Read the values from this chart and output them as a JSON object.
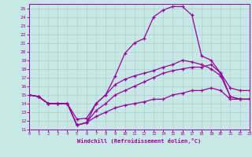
{
  "xlabel": "Windchill (Refroidissement éolien,°C)",
  "background_color": "#c8e8e8",
  "grid_color": "#a8d0d0",
  "line_color": "#990099",
  "xlim": [
    0,
    23
  ],
  "ylim": [
    11,
    25.5
  ],
  "yticks": [
    11,
    12,
    13,
    14,
    15,
    16,
    17,
    18,
    19,
    20,
    21,
    22,
    23,
    24,
    25
  ],
  "xticks": [
    0,
    1,
    2,
    3,
    4,
    5,
    6,
    7,
    8,
    9,
    10,
    11,
    12,
    13,
    14,
    15,
    16,
    17,
    18,
    19,
    20,
    21,
    22,
    23
  ],
  "line1_x": [
    0,
    1,
    2,
    3,
    4,
    5,
    6,
    7,
    8,
    9,
    10,
    11,
    12,
    13,
    14,
    15,
    16,
    17,
    18,
    19,
    20,
    21,
    22,
    23
  ],
  "line1_y": [
    15.0,
    14.8,
    14.0,
    14.0,
    14.0,
    12.2,
    12.3,
    14.0,
    15.0,
    17.2,
    19.8,
    21.0,
    21.5,
    24.0,
    24.8,
    25.2,
    25.2,
    24.2,
    19.5,
    19.0,
    17.5,
    14.8,
    14.5,
    14.5
  ],
  "line2_x": [
    0,
    1,
    2,
    3,
    4,
    5,
    6,
    7,
    8,
    9,
    10,
    11,
    12,
    13,
    14,
    15,
    16,
    17,
    18,
    19,
    20,
    21,
    22,
    23
  ],
  "line2_y": [
    15.0,
    14.8,
    14.0,
    14.0,
    14.0,
    11.5,
    11.8,
    14.0,
    15.0,
    16.2,
    16.8,
    17.2,
    17.5,
    17.8,
    18.2,
    18.5,
    19.0,
    18.8,
    18.5,
    18.0,
    17.2,
    14.8,
    14.5,
    14.5
  ],
  "line3_x": [
    0,
    1,
    2,
    3,
    4,
    5,
    6,
    7,
    8,
    9,
    10,
    11,
    12,
    13,
    14,
    15,
    16,
    17,
    18,
    19,
    20,
    21,
    22,
    23
  ],
  "line3_y": [
    15.0,
    14.8,
    14.0,
    14.0,
    14.0,
    11.5,
    11.8,
    13.2,
    14.0,
    15.0,
    15.5,
    16.0,
    16.5,
    17.0,
    17.5,
    17.8,
    18.0,
    18.2,
    18.2,
    18.5,
    17.5,
    15.8,
    15.5,
    15.5
  ],
  "line4_x": [
    0,
    1,
    2,
    3,
    4,
    5,
    6,
    7,
    8,
    9,
    10,
    11,
    12,
    13,
    14,
    15,
    16,
    17,
    18,
    19,
    20,
    21,
    22,
    23
  ],
  "line4_y": [
    15.0,
    14.8,
    14.0,
    14.0,
    14.0,
    11.5,
    11.8,
    12.5,
    13.0,
    13.5,
    13.8,
    14.0,
    14.2,
    14.5,
    14.5,
    15.0,
    15.2,
    15.5,
    15.5,
    15.8,
    15.5,
    14.5,
    14.5,
    14.5
  ]
}
